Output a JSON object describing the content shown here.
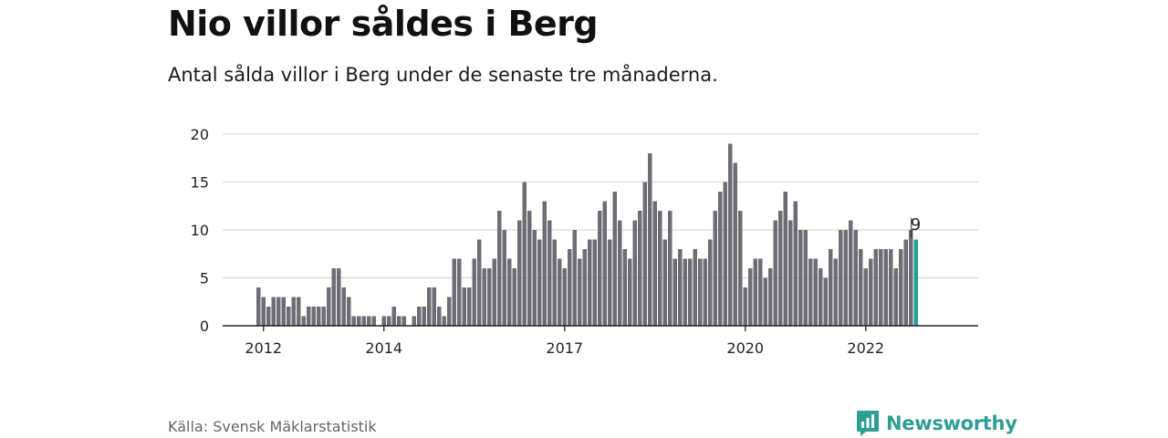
{
  "title": "Nio villor såldes i Berg",
  "subtitle": "Antal sålda villor i Berg under de senaste tre månaderna.",
  "source": "Källa: Svensk Mäklarstatistik",
  "brand": {
    "name": "Newsworthy",
    "icon": "newsworthy-logo-icon"
  },
  "colors": {
    "bar": "#6e6d75",
    "highlight": "#21a095",
    "grid": "#d9d9d9",
    "axis": "#222222",
    "brand": "#2f9e94"
  },
  "chart_data": {
    "type": "bar",
    "x_start": "2011-12",
    "xtick_labels": [
      "2012",
      "2014",
      "2017",
      "2020",
      "2022"
    ],
    "ylim": [
      0,
      20
    ],
    "yticks": [
      0,
      5,
      10,
      15,
      20
    ],
    "grid": true,
    "values": [
      4,
      3,
      2,
      3,
      3,
      3,
      2,
      3,
      3,
      1,
      2,
      2,
      2,
      2,
      4,
      6,
      6,
      4,
      3,
      1,
      1,
      1,
      1,
      1,
      0,
      1,
      1,
      2,
      1,
      1,
      0,
      1,
      2,
      2,
      4,
      4,
      2,
      1,
      3,
      7,
      7,
      4,
      4,
      7,
      9,
      6,
      6,
      7,
      12,
      10,
      7,
      6,
      11,
      15,
      12,
      10,
      9,
      13,
      11,
      9,
      7,
      6,
      8,
      10,
      7,
      8,
      9,
      9,
      12,
      13,
      9,
      14,
      11,
      8,
      7,
      11,
      12,
      15,
      18,
      13,
      12,
      9,
      12,
      7,
      8,
      7,
      7,
      8,
      7,
      7,
      9,
      12,
      14,
      15,
      19,
      17,
      12,
      4,
      6,
      7,
      7,
      5,
      6,
      11,
      12,
      14,
      11,
      13,
      10,
      10,
      7,
      7,
      6,
      5,
      8,
      7,
      10,
      10,
      11,
      10,
      8,
      6,
      7,
      8,
      8,
      8,
      8,
      6,
      8,
      9,
      10,
      9
    ],
    "highlight_index": 131,
    "highlight_label": "9"
  }
}
